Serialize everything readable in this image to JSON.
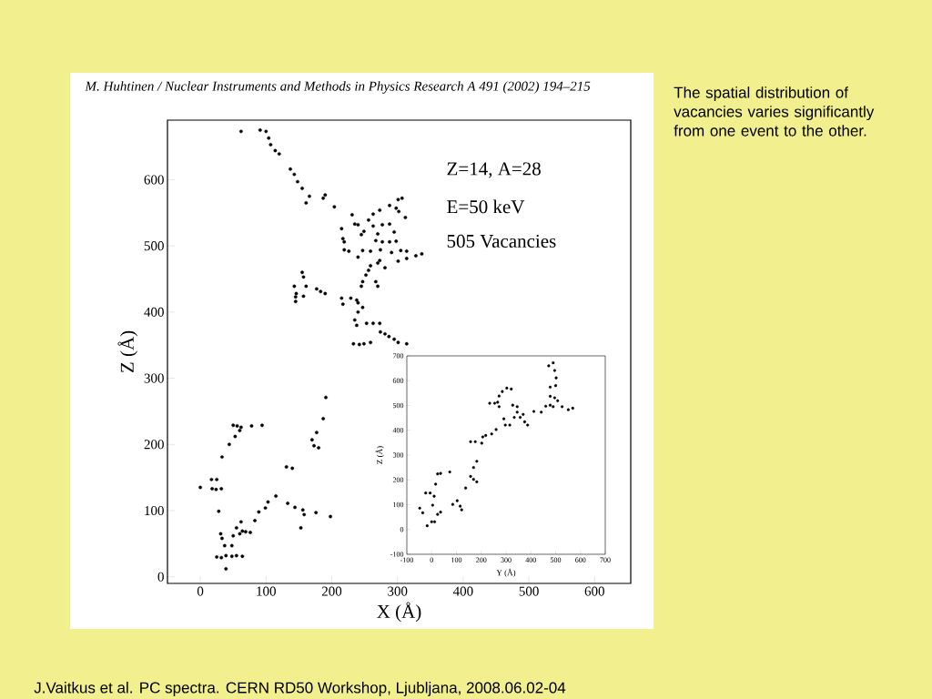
{
  "chart_data": [
    {
      "type": "scatter",
      "title": "M. Huhtinen / Nuclear Instruments and Methods in Physics Research A 491 (2002) 194–215",
      "xlabel": "X (Å)",
      "ylabel": "Z (Å)",
      "color": "#000000",
      "annotations": [
        "Z=14, A=28",
        "E=50 keV",
        "505 Vacancies",
        "The spatial distribution of vacancies varies significantly from one event to the other.",
        "J.Vaitkus et al. PC spectra. CERN RD50 Workshop, Ljubljana, 2008.06.02-04"
      ],
      "xlim": [
        -50,
        655
      ],
      "ylim": [
        -10,
        690
      ],
      "xticks": [
        0,
        100,
        200,
        300,
        400,
        500,
        600
      ],
      "yticks": [
        0,
        100,
        200,
        300,
        400,
        500,
        600
      ],
      "x": [
        0,
        17,
        25,
        18,
        24,
        32,
        28,
        31,
        33,
        37,
        48,
        25,
        32,
        39,
        48,
        55,
        64,
        39,
        44,
        33,
        50,
        56,
        60,
        53,
        62,
        78,
        94,
        50,
        55,
        62,
        64,
        69,
        76,
        60,
        83,
        89,
        99,
        103,
        115,
        131,
        140,
        133,
        144,
        156,
        158,
        153,
        176,
        198,
        170,
        173,
        177,
        187,
        191,
        180,
        62,
        91,
        100,
        104,
        107,
        114,
        120,
        137,
        143,
        148,
        155,
        166,
        161,
        187,
        190,
        204,
        143,
        145,
        145,
        155,
        157,
        161,
        146,
        157,
        177,
        183,
        190,
        301,
        307,
        298,
        302,
        312,
        288,
        273,
        263,
        231,
        235,
        240,
        215,
        256,
        249,
        245,
        263,
        277,
        288,
        295,
        270,
        267,
        277,
        288,
        298,
        217,
        219,
        219,
        226,
        247,
        259,
        274,
        291,
        305,
        314,
        328,
        337,
        314,
        301,
        240,
        273,
        270,
        281,
        259,
        256,
        252,
        247,
        245,
        267,
        270,
        215,
        217,
        229,
        238,
        240,
        247,
        240,
        235,
        238,
        253,
        263,
        273,
        274,
        281,
        287,
        295,
        301,
        314,
        233,
        242,
        249,
        259
      ],
      "values": [
        135,
        147,
        147,
        133,
        132,
        133,
        99,
        65,
        58,
        47,
        47,
        30,
        29,
        32,
        31,
        32,
        31,
        12,
        200,
        181,
        229,
        228,
        221,
        212,
        226,
        228,
        229,
        62,
        74,
        83,
        69,
        68,
        67,
        65,
        85,
        98,
        104,
        113,
        122,
        166,
        164,
        111,
        105,
        101,
        94,
        74,
        97,
        91,
        207,
        198,
        218,
        239,
        271,
        195,
        673,
        675,
        673,
        663,
        653,
        644,
        639,
        616,
        608,
        597,
        587,
        575,
        565,
        572,
        577,
        559,
        439,
        423,
        416,
        460,
        453,
        439,
        428,
        424,
        435,
        431,
        428,
        570,
        572,
        557,
        552,
        543,
        561,
        554,
        548,
        547,
        533,
        532,
        526,
        539,
        522,
        517,
        530,
        532,
        533,
        521,
        518,
        508,
        506,
        506,
        507,
        511,
        506,
        494,
        492,
        493,
        492,
        494,
        490,
        493,
        492,
        485,
        488,
        481,
        477,
        483,
        478,
        474,
        467,
        470,
        463,
        456,
        446,
        439,
        446,
        439,
        421,
        412,
        421,
        418,
        414,
        407,
        400,
        388,
        380,
        383,
        383,
        383,
        370,
        367,
        363,
        359,
        354,
        352,
        352,
        351,
        352,
        354
      ]
    },
    {
      "type": "scatter",
      "xlabel": "Y (Å)",
      "ylabel": "Z (Å)",
      "color": "#000000",
      "xlim": [
        -100,
        700
      ],
      "ylim": [
        -100,
        700
      ],
      "xticks": [
        -100,
        0,
        100,
        200,
        300,
        400,
        500,
        600,
        700
      ],
      "yticks": [
        -100,
        0,
        100,
        200,
        300,
        400,
        500,
        600,
        700
      ],
      "x": [
        -48,
        -36,
        -18,
        -24,
        -6,
        10,
        4,
        0,
        12,
        24,
        36,
        16,
        24,
        36,
        73,
        85,
        103,
        115,
        121,
        137,
        157,
        169,
        182,
        169,
        182,
        157,
        176,
        202,
        206,
        218,
        242,
        260,
        234,
        254,
        266,
        272,
        285,
        303,
        321,
        272,
        291,
        297,
        315,
        327,
        345,
        333,
        357,
        369,
        375,
        387,
        345,
        412,
        442,
        460,
        478,
        490,
        472,
        490,
        496,
        478,
        500,
        502,
        478,
        496,
        508,
        526,
        551,
        569
      ],
      "values": [
        86,
        67,
        15,
        147,
        147,
        134,
        98,
        31,
        31,
        61,
        70,
        183,
        224,
        226,
        232,
        101,
        116,
        94,
        79,
        167,
        214,
        202,
        192,
        250,
        275,
        354,
        354,
        348,
        373,
        379,
        385,
        403,
        509,
        509,
        513,
        538,
        556,
        570,
        566,
        495,
        446,
        421,
        421,
        501,
        495,
        452,
        452,
        464,
        434,
        421,
        473,
        476,
        473,
        497,
        501,
        495,
        660,
        672,
        641,
        574,
        580,
        611,
        537,
        531,
        519,
        495,
        483,
        489
      ]
    }
  ]
}
